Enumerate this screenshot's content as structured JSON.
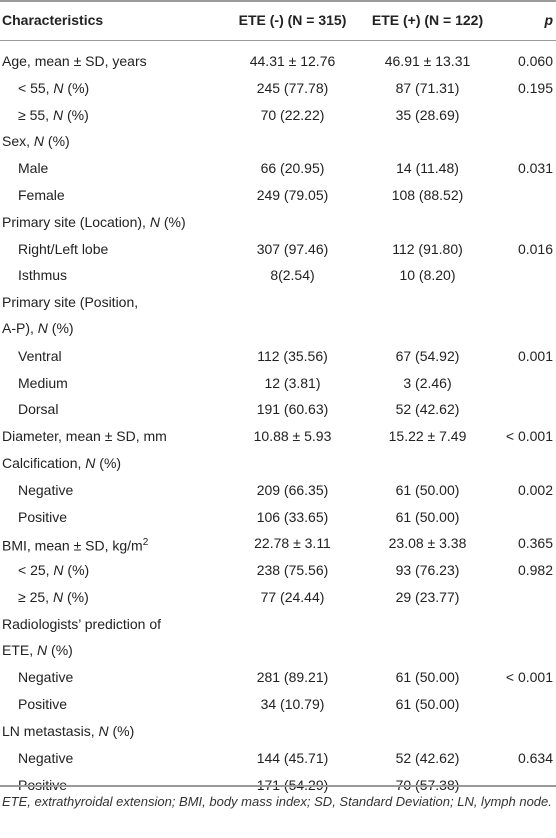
{
  "header": {
    "characteristics": "Characteristics",
    "ete_neg": "ETE (-) (N = 315)",
    "ete_pos": "ETE (+) (N = 122)",
    "p": "p"
  },
  "rows": [
    {
      "label": "Age, mean ± SD, years",
      "neg": "44.31 ± 12.76",
      "pos": "46.91 ± 13.31",
      "p": "0.060"
    },
    {
      "label_pre": "< 55, ",
      "label_italic": "N",
      "label_post": " (%)",
      "neg": "245 (77.78)",
      "pos": "87 (71.31)",
      "p": "0.195"
    },
    {
      "label_pre": "≥ 55, ",
      "label_italic": "N",
      "label_post": " (%)",
      "neg": "70 (22.22)",
      "pos": "35 (28.69)",
      "p": ""
    },
    {
      "label_pre": "Sex, ",
      "label_italic": "N",
      "label_post": " (%)",
      "neg": "",
      "pos": "",
      "p": ""
    },
    {
      "label": "Male",
      "neg": "66 (20.95)",
      "pos": "14 (11.48)",
      "p": "0.031"
    },
    {
      "label": "Female",
      "neg": "249 (79.05)",
      "pos": "108 (88.52)",
      "p": ""
    },
    {
      "label_pre": "Primary site (Location), ",
      "label_italic": "N",
      "label_post": " (%)",
      "neg": "",
      "pos": "",
      "p": ""
    },
    {
      "label": "Right/Left lobe",
      "neg": "307 (97.46)",
      "pos": "112 (91.80)",
      "p": "0.016"
    },
    {
      "label": "Isthmus",
      "neg": "8(2.54)",
      "pos": "10 (8.20)",
      "p": ""
    },
    {
      "label_line1": "Primary site (Position,",
      "label_pre": "A-P), ",
      "label_italic": "N",
      "label_post": " (%)",
      "neg": "",
      "pos": "",
      "p": ""
    },
    {
      "label": "Ventral",
      "neg": "112 (35.56)",
      "pos": "67 (54.92)",
      "p": "0.001"
    },
    {
      "label": "Medium",
      "neg": "12 (3.81)",
      "pos": "3 (2.46)",
      "p": ""
    },
    {
      "label": "Dorsal",
      "neg": "191 (60.63)",
      "pos": "52 (42.62)",
      "p": ""
    },
    {
      "label": "Diameter, mean ± SD, mm",
      "neg": "10.88 ± 5.93",
      "pos": "15.22 ± 7.49",
      "p": "< 0.001"
    },
    {
      "label_pre": "Calcification, ",
      "label_italic": "N",
      "label_post": " (%)",
      "neg": "",
      "pos": "",
      "p": ""
    },
    {
      "label": "Negative",
      "neg": "209 (66.35)",
      "pos": "61 (50.00)",
      "p": "0.002"
    },
    {
      "label": "Positive",
      "neg": "106 (33.65)",
      "pos": "61 (50.00)",
      "p": ""
    },
    {
      "label": "BMI, mean ± SD, kg/m",
      "label_sup": "2",
      "neg": "22.78 ± 3.11",
      "pos": "23.08 ± 3.38",
      "p": "0.365"
    },
    {
      "label_pre": "< 25, ",
      "label_italic": "N",
      "label_post": " (%)",
      "neg": "238 (75.56)",
      "pos": "93 (76.23)",
      "p": "0.982"
    },
    {
      "label_pre": "≥ 25, ",
      "label_italic": "N",
      "label_post": " (%)",
      "neg": "77 (24.44)",
      "pos": "29 (23.77)",
      "p": ""
    },
    {
      "label_line1": "Radiologists’ prediction of",
      "label_pre": "ETE, ",
      "label_italic": "N",
      "label_post": " (%)",
      "neg": "",
      "pos": "",
      "p": ""
    },
    {
      "label": "Negative",
      "neg": "281 (89.21)",
      "pos": "61 (50.00)",
      "p": "< 0.001"
    },
    {
      "label": "Positive",
      "neg": "34 (10.79)",
      "pos": "61 (50.00)",
      "p": ""
    },
    {
      "label_pre": "LN metastasis, ",
      "label_italic": "N",
      "label_post": " (%)",
      "neg": "",
      "pos": "",
      "p": ""
    },
    {
      "label": "Negative",
      "neg": "144 (45.71)",
      "pos": "52 (42.62)",
      "p": "0.634"
    },
    {
      "label": "Positive",
      "neg": "171 (54.29)",
      "pos": "70 (57.38)",
      "p": ""
    }
  ],
  "footer": "ETE, extrathyroidal extension; BMI, body mass index; SD, Standard Deviation; LN, lymph node."
}
